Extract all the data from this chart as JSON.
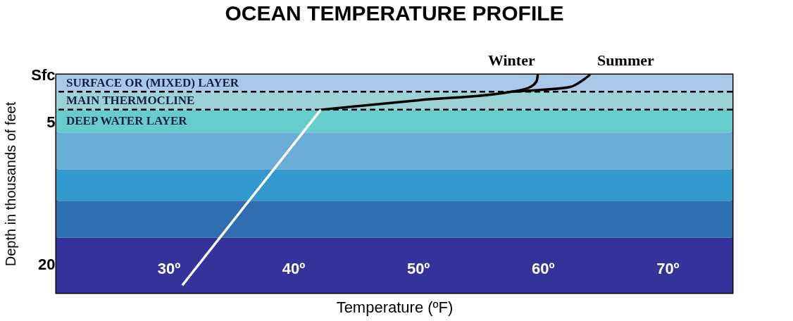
{
  "chart_data": {
    "type": "line",
    "title": "OCEAN TEMPERATURE PROFILE",
    "xlabel": "Temperature (ºF)",
    "ylabel": "Depth in thousands of feet",
    "xlim": [
      21,
      75.2
    ],
    "ylim": [
      23,
      0
    ],
    "xticks": [
      {
        "value": 30,
        "label": "30º"
      },
      {
        "value": 40,
        "label": "40º"
      },
      {
        "value": 50,
        "label": "50º"
      },
      {
        "value": 60,
        "label": "60º"
      },
      {
        "value": 70,
        "label": "70º"
      }
    ],
    "yticks": [
      {
        "value": 0,
        "label": "Sfc"
      },
      5,
      20
    ],
    "grid": false,
    "legend": false,
    "line_style": "solid",
    "marker": "none",
    "series": [
      {
        "name": "Winter",
        "color": "#000000",
        "x": [
          59.6,
          59.5,
          59.0,
          57.5,
          50,
          42.2
        ],
        "values": [
          0,
          0.7,
          1.3,
          1.8,
          2.7,
          3.7
        ]
      },
      {
        "name": "Summer",
        "color": "#000000",
        "x": [
          63.8,
          63.3,
          62.2,
          60,
          57.5
        ],
        "values": [
          0,
          0.5,
          1.3,
          1.6,
          1.8
        ]
      },
      {
        "color": "#ffffff",
        "x": [
          42.2,
          31.1
        ],
        "values": [
          3.7,
          22.2
        ]
      }
    ],
    "bands": [
      {
        "axis": "y",
        "from": 0,
        "to": 1.8,
        "label": "SURFACE  OR (MIXED) LAYER",
        "color": "#a9c8ea"
      },
      {
        "axis": "y",
        "from": 1.8,
        "to": 3.7,
        "label": "MAIN THERMOCLINE",
        "color": "#9bd2d6"
      },
      {
        "axis": "y",
        "from": 3.7,
        "to": 6.1,
        "label": "DEEP WATER LAYER",
        "color": "#66cccc"
      },
      {
        "axis": "y",
        "from": 6.1,
        "to": 10,
        "color": "#6aaed8"
      },
      {
        "axis": "y",
        "from": 10,
        "to": 13.3,
        "color": "#3399cc"
      },
      {
        "axis": "y",
        "from": 13.3,
        "to": 17.2,
        "color": "#2f6fb0"
      },
      {
        "axis": "y",
        "from": 17.2,
        "to": 23,
        "color": "#333399"
      }
    ],
    "ref_lines": [
      {
        "axis": "y",
        "value": 1.8,
        "color": "#000000",
        "line_style": "dashed"
      },
      {
        "axis": "y",
        "value": 3.7,
        "color": "#000000",
        "line_style": "dashed"
      }
    ]
  }
}
